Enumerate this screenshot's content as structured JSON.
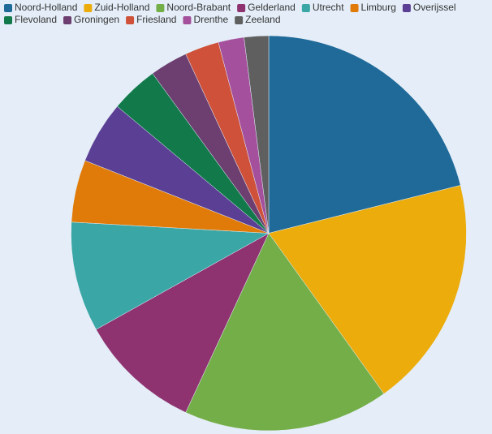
{
  "chart_data": {
    "type": "pie",
    "categories": [
      "Noord-Holland",
      "Zuid-Holland",
      "Noord-Brabant",
      "Gelderland",
      "Utrecht",
      "Limburg",
      "Overijssel",
      "Flevoland",
      "Groningen",
      "Friesland",
      "Drenthe",
      "Zeeland"
    ],
    "values": [
      21.1,
      19.0,
      16.8,
      10.0,
      9.0,
      5.1,
      5.1,
      3.9,
      3.1,
      2.8,
      2.1,
      2.0
    ],
    "colors": [
      "#1f6a99",
      "#ebac0c",
      "#74ae48",
      "#8e3370",
      "#3aa6a6",
      "#e07b09",
      "#5b3f94",
      "#127a4a",
      "#6c3f70",
      "#cf5139",
      "#a4509c",
      "#5f5f5f"
    ],
    "legend": "top-left"
  }
}
